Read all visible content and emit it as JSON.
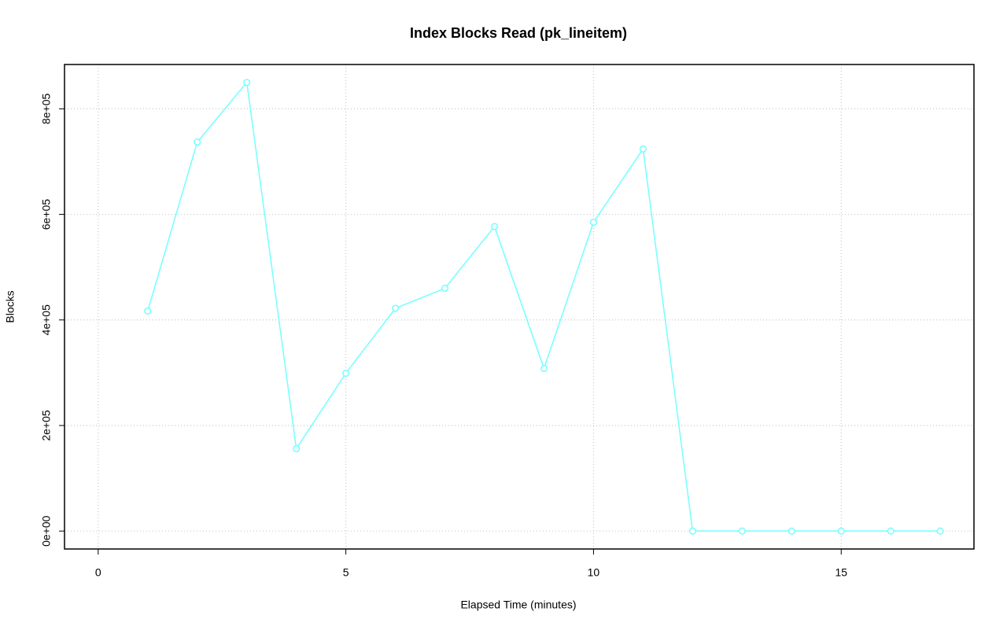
{
  "chart_data": {
    "type": "line",
    "title": "Index Blocks Read (pk_lineitem)",
    "xlabel": "Elapsed Time (minutes)",
    "ylabel": "Blocks",
    "x": [
      1,
      2,
      3,
      4,
      5,
      6,
      7,
      8,
      9,
      10,
      11,
      12,
      13,
      14,
      15,
      16,
      17
    ],
    "series": [
      {
        "color": "#73ffff",
        "values": [
          417000,
          737000,
          850000,
          156000,
          299000,
          422000,
          460000,
          577000,
          308000,
          585000,
          724000,
          0,
          0,
          0,
          0,
          0,
          0
        ]
      }
    ],
    "xlim": [
      -0.68,
      17.68
    ],
    "xticks": [
      0,
      5,
      10,
      15
    ],
    "ylim": [
      -34000,
      884000
    ],
    "yticks": [
      {
        "value": 0,
        "label": "0e+00"
      },
      {
        "value": 200000,
        "label": "2e+05"
      },
      {
        "value": 400000,
        "label": "4e+05"
      },
      {
        "value": 600000,
        "label": "6e+05"
      },
      {
        "value": 800000,
        "label": "8e+05"
      }
    ],
    "grid": true
  }
}
